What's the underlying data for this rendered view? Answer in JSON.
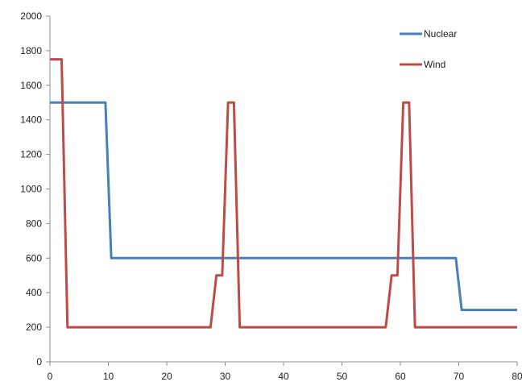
{
  "chart_data": {
    "type": "line",
    "title": "",
    "xlabel": "",
    "ylabel": "",
    "xlim": [
      0,
      80
    ],
    "ylim": [
      0,
      2000
    ],
    "x_ticks": [
      0,
      10,
      20,
      30,
      40,
      50,
      60,
      70,
      80
    ],
    "y_ticks": [
      0,
      200,
      400,
      600,
      800,
      1000,
      1200,
      1400,
      1600,
      1800,
      2000
    ],
    "x_tick_labels": [
      "0",
      "10",
      "20",
      "30",
      "40",
      "50",
      "60",
      "70",
      "80"
    ],
    "y_tick_labels": [
      "0",
      "200",
      "400",
      "600",
      "800",
      "1000",
      "1200",
      "1400",
      "1600",
      "1800",
      "2000"
    ],
    "grid": false,
    "legend": "top-right",
    "series": [
      {
        "name": "Nuclear",
        "color": "#4a7ebb",
        "points": [
          [
            0,
            1500
          ],
          [
            9.5,
            1500
          ],
          [
            10.5,
            600
          ],
          [
            69.5,
            600
          ],
          [
            70.5,
            300
          ],
          [
            80,
            300
          ]
        ]
      },
      {
        "name": "Wind",
        "color": "#be4b48",
        "points": [
          [
            0,
            1750
          ],
          [
            2,
            1750
          ],
          [
            3,
            200
          ],
          [
            27.5,
            200
          ],
          [
            28.5,
            500
          ],
          [
            29.5,
            500
          ],
          [
            30.5,
            1500
          ],
          [
            31.5,
            1500
          ],
          [
            32.5,
            200
          ],
          [
            57.5,
            200
          ],
          [
            58.5,
            500
          ],
          [
            59.5,
            500
          ],
          [
            60.5,
            1500
          ],
          [
            61.5,
            1500
          ],
          [
            62.5,
            200
          ],
          [
            80,
            200
          ]
        ]
      }
    ]
  }
}
